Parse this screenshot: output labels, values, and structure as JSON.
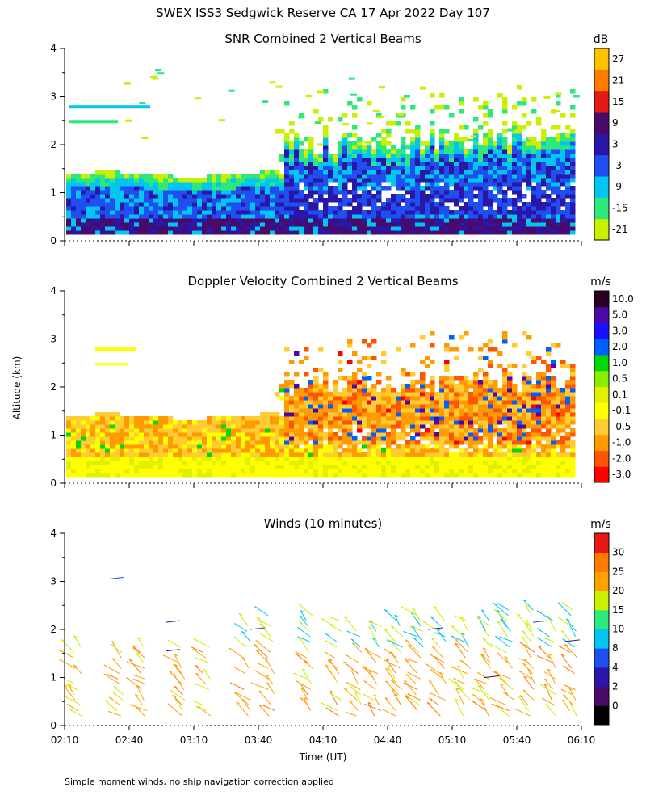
{
  "figure": {
    "title": "SWEX ISS3 Sedgwick Reserve CA  17 Apr 2022 Day 107",
    "footnote": "Simple moment winds, no ship navigation correction applied",
    "ylabel": "Altitude (km)",
    "xlabel": "Time (UT)"
  },
  "chart_data": [
    {
      "type": "heatmap",
      "title": "SNR Combined 2 Vertical Beams",
      "ylim": [
        0,
        4
      ],
      "yticks": [
        "0",
        "1",
        "2",
        "3",
        "4"
      ],
      "colorbar": {
        "unit": "dB",
        "labels": [
          "27",
          "21",
          "15",
          "9",
          "3",
          "-3",
          "-9",
          "-15",
          "-21"
        ],
        "colors": [
          "#c8f000",
          "#2ee87a",
          "#00c6f0",
          "#1f4ff0",
          "#2a17a8",
          "#4a0a6a",
          "#e61a14",
          "#ff7a00",
          "#ffc000"
        ]
      }
    },
    {
      "type": "heatmap",
      "title": "Doppler Velocity Combined 2 Vertical Beams",
      "ylim": [
        0,
        4
      ],
      "yticks": [
        "0",
        "1",
        "2",
        "3",
        "4"
      ],
      "colorbar": {
        "unit": "m/s",
        "labels": [
          "10.0",
          "5.0",
          "3.0",
          "2.0",
          "1.0",
          "0.5",
          "0.1",
          "-0.1",
          "-0.5",
          "-1.0",
          "-2.0",
          "-3.0"
        ],
        "colors": [
          "#ff0000",
          "#ff5500",
          "#ff9a00",
          "#ffcc33",
          "#ffff00",
          "#e0f000",
          "#8cec00",
          "#00d800",
          "#0060ff",
          "#1a10ff",
          "#4a0aa8",
          "#2a0020"
        ]
      }
    },
    {
      "type": "scatter",
      "title": "Winds (10 minutes)",
      "ylim": [
        0,
        4
      ],
      "yticks": [
        "0",
        "1",
        "2",
        "3",
        "4"
      ],
      "xticks": [
        "02:10",
        "02:40",
        "03:10",
        "03:40",
        "04:10",
        "04:40",
        "05:10",
        "05:40",
        "06:10"
      ],
      "colorbar": {
        "unit": "m/s",
        "labels": [
          "30",
          "25",
          "20",
          "15",
          "10",
          "8",
          "4",
          "2",
          "0"
        ],
        "colors": [
          "#000000",
          "#4a0a6a",
          "#2a17a8",
          "#1f4ff0",
          "#00c6f0",
          "#2ee87a",
          "#c8f000",
          "#ffa000",
          "#ff7a00",
          "#e61a14"
        ]
      }
    }
  ]
}
